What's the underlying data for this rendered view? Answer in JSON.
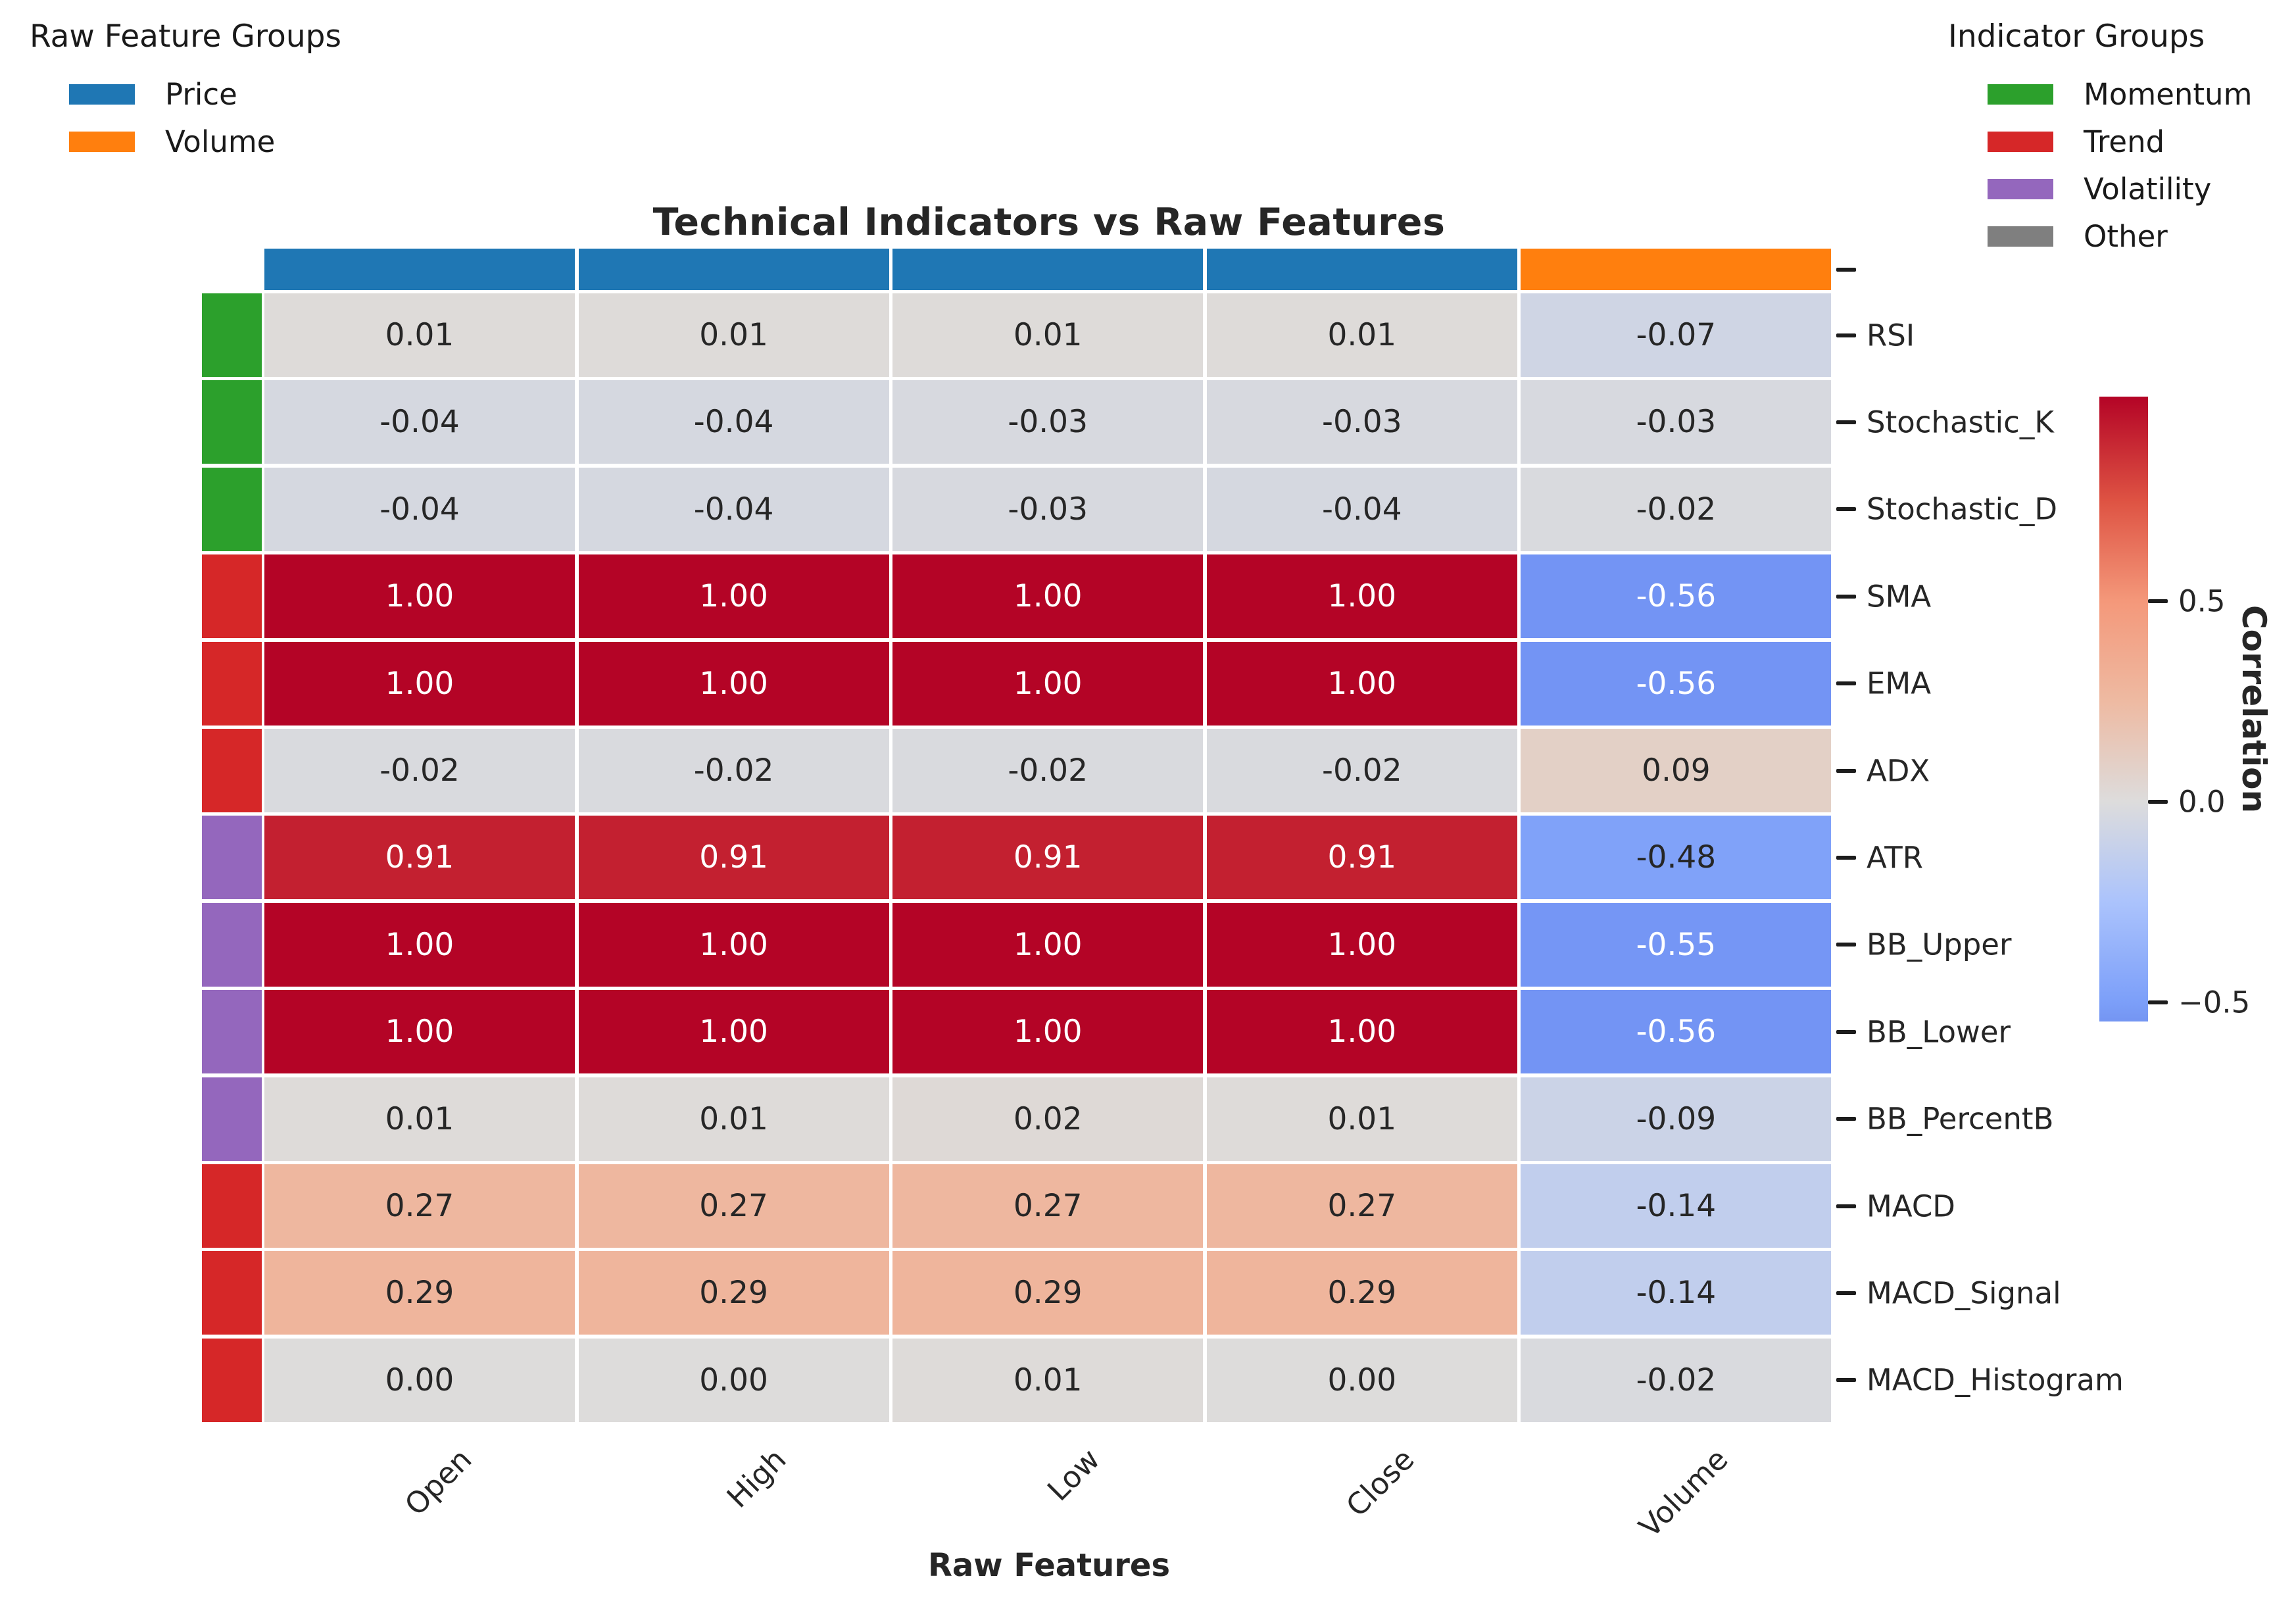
{
  "title": "Technical Indicators vs Raw Features",
  "legend_left": {
    "title": "Raw Feature Groups",
    "items": [
      {
        "label": "Price",
        "color": "#1f77b4"
      },
      {
        "label": "Volume",
        "color": "#ff7f0e"
      }
    ]
  },
  "legend_right": {
    "title": "Indicator Groups",
    "items": [
      {
        "label": "Momentum",
        "color": "#2ca02c"
      },
      {
        "label": "Trend",
        "color": "#d62728"
      },
      {
        "label": "Volatility",
        "color": "#9467bd"
      },
      {
        "label": "Other",
        "color": "#7f7f7f"
      }
    ]
  },
  "chart_data": {
    "type": "heatmap",
    "title": "Technical Indicators vs Raw Features",
    "xlabel": "Raw Features",
    "columns": [
      "Open",
      "High",
      "Low",
      "Close",
      "Volume"
    ],
    "column_groups": [
      "Price",
      "Price",
      "Price",
      "Price",
      "Volume"
    ],
    "rows": [
      "RSI",
      "Stochastic_K",
      "Stochastic_D",
      "SMA",
      "EMA",
      "ADX",
      "ATR",
      "BB_Upper",
      "BB_Lower",
      "BB_PercentB",
      "MACD",
      "MACD_Signal",
      "MACD_Histogram"
    ],
    "row_groups": [
      "Momentum",
      "Momentum",
      "Momentum",
      "Trend",
      "Trend",
      "Trend",
      "Volatility",
      "Volatility",
      "Volatility",
      "Volatility",
      "Trend",
      "Trend",
      "Trend"
    ],
    "values": [
      [
        0.01,
        0.01,
        0.01,
        0.01,
        -0.07
      ],
      [
        -0.04,
        -0.04,
        -0.03,
        -0.03,
        -0.03
      ],
      [
        -0.04,
        -0.04,
        -0.03,
        -0.04,
        -0.02
      ],
      [
        1.0,
        1.0,
        1.0,
        1.0,
        -0.56
      ],
      [
        1.0,
        1.0,
        1.0,
        1.0,
        -0.56
      ],
      [
        -0.02,
        -0.02,
        -0.02,
        -0.02,
        0.09
      ],
      [
        0.91,
        0.91,
        0.91,
        0.91,
        -0.48
      ],
      [
        1.0,
        1.0,
        1.0,
        1.0,
        -0.55
      ],
      [
        1.0,
        1.0,
        1.0,
        1.0,
        -0.56
      ],
      [
        0.01,
        0.01,
        0.02,
        0.01,
        -0.09
      ],
      [
        0.27,
        0.27,
        0.27,
        0.27,
        -0.14
      ],
      [
        0.29,
        0.29,
        0.29,
        0.29,
        -0.14
      ],
      [
        0.0,
        0.0,
        0.01,
        0.0,
        -0.02
      ]
    ],
    "value_format_decimals": 2,
    "colormap": "coolwarm",
    "grid_gap_color": "#ffffff",
    "group_colors": {
      "Price": "#1f77b4",
      "Volume": "#ff7f0e",
      "Momentum": "#2ca02c",
      "Trend": "#d62728",
      "Volatility": "#9467bd",
      "Other": "#7f7f7f"
    },
    "colorbar": {
      "label": "Correlation",
      "ticks": [
        {
          "value": 0.5,
          "label": "0.5"
        },
        {
          "value": 0.0,
          "label": "0.0"
        },
        {
          "value": -0.5,
          "label": "−0.5"
        }
      ],
      "vmin": -0.56,
      "vmax": 1.0
    }
  }
}
